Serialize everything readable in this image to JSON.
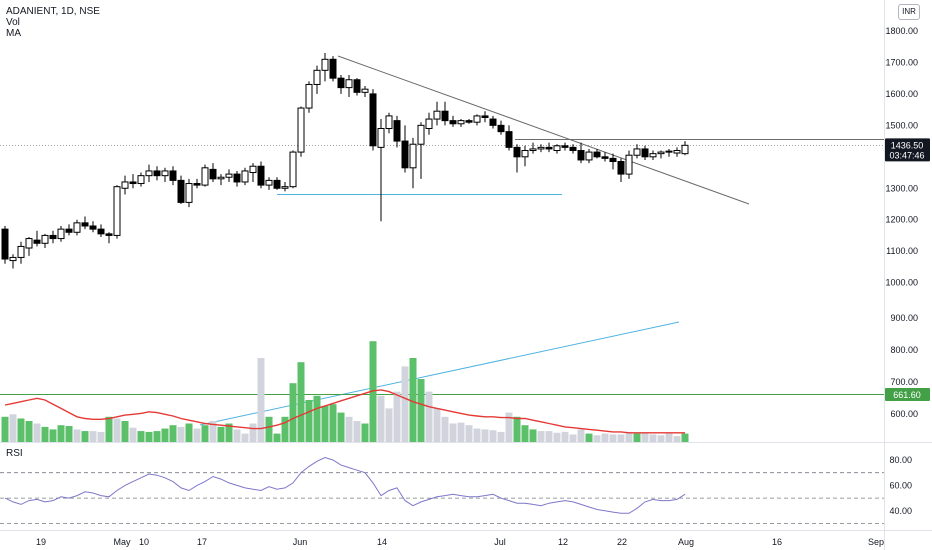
{
  "legend": {
    "symbol_line": "ADANIENT, 1D, NSE",
    "vol_label": "Vol",
    "ma_label": "MA",
    "rsi_label": "RSI"
  },
  "currency_button": "INR",
  "price_badge": {
    "price": "1436.50",
    "countdown": "03:47:46"
  },
  "volume_ma_badge": "661.60",
  "colors": {
    "up": "#ffffff",
    "down": "#000000",
    "wick": "#000000",
    "vol_green": "#5cbf6a",
    "vol_grey": "#d1d4dc",
    "vol_ma": "#e53935",
    "rsi_line": "#7e77c9",
    "trendline": "#6b6b6b",
    "blue_line": "#4fb3e0",
    "green_line": "#43a047"
  },
  "chart_data": {
    "type": "candlestick",
    "timeframe": "1D",
    "symbol": "ADANIENT",
    "exchange": "NSE",
    "currency": "INR",
    "x_tick_labels": [
      "19",
      "May",
      "10",
      "17",
      "Jun",
      "14",
      "Jul",
      "12",
      "22",
      "Aug",
      "16",
      "Sep"
    ],
    "price_axis": {
      "ylim": [
        930,
        1840
      ],
      "ticks": [
        1000,
        1100,
        1200,
        1300,
        1400,
        1500,
        1600,
        1700,
        1800
      ]
    },
    "volume_axis": {
      "ticks": [
        600,
        700,
        800,
        900
      ]
    },
    "rsi_axis": {
      "ylim": [
        25,
        93
      ],
      "ticks": [
        40,
        60,
        80
      ],
      "bands": [
        30,
        50,
        70
      ]
    },
    "last_price": 1436.5,
    "candles": [
      [
        1170,
        1180,
        1060,
        1075
      ],
      [
        1070,
        1090,
        1045,
        1080
      ],
      [
        1080,
        1130,
        1060,
        1115
      ],
      [
        1110,
        1145,
        1085,
        1140
      ],
      [
        1135,
        1165,
        1115,
        1125
      ],
      [
        1125,
        1155,
        1110,
        1150
      ],
      [
        1150,
        1165,
        1125,
        1140
      ],
      [
        1140,
        1180,
        1130,
        1170
      ],
      [
        1170,
        1185,
        1150,
        1160
      ],
      [
        1160,
        1200,
        1150,
        1190
      ],
      [
        1190,
        1210,
        1170,
        1180
      ],
      [
        1180,
        1195,
        1160,
        1170
      ],
      [
        1170,
        1185,
        1145,
        1155
      ],
      [
        1155,
        1160,
        1125,
        1150
      ],
      [
        1150,
        1310,
        1140,
        1305
      ],
      [
        1300,
        1340,
        1280,
        1320
      ],
      [
        1320,
        1345,
        1300,
        1315
      ],
      [
        1315,
        1350,
        1305,
        1340
      ],
      [
        1340,
        1375,
        1320,
        1355
      ],
      [
        1355,
        1370,
        1325,
        1340
      ],
      [
        1340,
        1365,
        1320,
        1355
      ],
      [
        1355,
        1370,
        1310,
        1325
      ],
      [
        1325,
        1340,
        1250,
        1255
      ],
      [
        1255,
        1330,
        1240,
        1315
      ],
      [
        1315,
        1330,
        1300,
        1310
      ],
      [
        1310,
        1375,
        1305,
        1365
      ],
      [
        1360,
        1380,
        1320,
        1330
      ],
      [
        1330,
        1345,
        1310,
        1335
      ],
      [
        1335,
        1360,
        1320,
        1345
      ],
      [
        1345,
        1355,
        1305,
        1320
      ],
      [
        1320,
        1365,
        1310,
        1355
      ],
      [
        1350,
        1380,
        1320,
        1370
      ],
      [
        1370,
        1385,
        1300,
        1310
      ],
      [
        1310,
        1335,
        1295,
        1325
      ],
      [
        1325,
        1335,
        1295,
        1300
      ],
      [
        1300,
        1320,
        1290,
        1305
      ],
      [
        1305,
        1420,
        1300,
        1415
      ],
      [
        1415,
        1560,
        1400,
        1555
      ],
      [
        1555,
        1640,
        1540,
        1630
      ],
      [
        1630,
        1690,
        1600,
        1675
      ],
      [
        1675,
        1730,
        1640,
        1710
      ],
      [
        1710,
        1720,
        1640,
        1650
      ],
      [
        1650,
        1660,
        1600,
        1620
      ],
      [
        1620,
        1660,
        1590,
        1645
      ],
      [
        1645,
        1650,
        1595,
        1605
      ],
      [
        1605,
        1625,
        1590,
        1615
      ],
      [
        1600,
        1615,
        1420,
        1435
      ],
      [
        1430,
        1520,
        1195,
        1490
      ],
      [
        1490,
        1540,
        1475,
        1530
      ],
      [
        1515,
        1530,
        1430,
        1450
      ],
      [
        1450,
        1500,
        1350,
        1365
      ],
      [
        1365,
        1460,
        1300,
        1440
      ],
      [
        1440,
        1510,
        1330,
        1500
      ],
      [
        1490,
        1540,
        1470,
        1520
      ],
      [
        1520,
        1575,
        1500,
        1545
      ],
      [
        1545,
        1575,
        1500,
        1515
      ],
      [
        1515,
        1530,
        1495,
        1505
      ],
      [
        1505,
        1520,
        1495,
        1515
      ],
      [
        1515,
        1520,
        1505,
        1510
      ],
      [
        1510,
        1535,
        1500,
        1530
      ],
      [
        1530,
        1545,
        1510,
        1525
      ],
      [
        1520,
        1530,
        1490,
        1500
      ],
      [
        1500,
        1515,
        1470,
        1480
      ],
      [
        1480,
        1500,
        1420,
        1430
      ],
      [
        1430,
        1440,
        1350,
        1400
      ],
      [
        1400,
        1435,
        1370,
        1420
      ],
      [
        1420,
        1445,
        1410,
        1425
      ],
      [
        1425,
        1440,
        1415,
        1430
      ],
      [
        1430,
        1445,
        1415,
        1425
      ],
      [
        1420,
        1440,
        1410,
        1435
      ],
      [
        1435,
        1445,
        1420,
        1430
      ],
      [
        1430,
        1440,
        1410,
        1420
      ],
      [
        1420,
        1445,
        1380,
        1390
      ],
      [
        1390,
        1425,
        1380,
        1415
      ],
      [
        1415,
        1425,
        1395,
        1400
      ],
      [
        1400,
        1415,
        1385,
        1395
      ],
      [
        1395,
        1410,
        1360,
        1385
      ],
      [
        1385,
        1395,
        1320,
        1345
      ],
      [
        1345,
        1420,
        1330,
        1405
      ],
      [
        1405,
        1440,
        1395,
        1425
      ],
      [
        1425,
        1435,
        1390,
        1400
      ],
      [
        1400,
        1420,
        1390,
        1410
      ],
      [
        1410,
        1420,
        1395,
        1415
      ],
      [
        1415,
        1425,
        1400,
        1418
      ],
      [
        1412,
        1430,
        1400,
        1420
      ],
      [
        1410,
        1450,
        1405,
        1436.5
      ]
    ],
    "volume": [
      [
        0.3,
        "green"
      ],
      [
        0.33,
        "grey"
      ],
      [
        0.28,
        "green"
      ],
      [
        0.25,
        "green"
      ],
      [
        0.22,
        "grey"
      ],
      [
        0.18,
        "green"
      ],
      [
        0.15,
        "green"
      ],
      [
        0.2,
        "green"
      ],
      [
        0.19,
        "green"
      ],
      [
        0.15,
        "grey"
      ],
      [
        0.13,
        "green"
      ],
      [
        0.13,
        "grey"
      ],
      [
        0.12,
        "grey"
      ],
      [
        0.3,
        "green"
      ],
      [
        0.28,
        "grey"
      ],
      [
        0.25,
        "green"
      ],
      [
        0.17,
        "grey"
      ],
      [
        0.13,
        "green"
      ],
      [
        0.12,
        "green"
      ],
      [
        0.13,
        "green"
      ],
      [
        0.16,
        "green"
      ],
      [
        0.2,
        "green"
      ],
      [
        0.18,
        "grey"
      ],
      [
        0.22,
        "green"
      ],
      [
        0.16,
        "grey"
      ],
      [
        0.2,
        "green"
      ],
      [
        0.25,
        "grey"
      ],
      [
        0.18,
        "green"
      ],
      [
        0.22,
        "green"
      ],
      [
        0.15,
        "grey"
      ],
      [
        0.1,
        "grey"
      ],
      [
        0.22,
        "grey"
      ],
      [
        1.0,
        "grey"
      ],
      [
        0.3,
        "green"
      ],
      [
        0.1,
        "green"
      ],
      [
        0.3,
        "green"
      ],
      [
        0.7,
        "green"
      ],
      [
        0.95,
        "green"
      ],
      [
        0.5,
        "green"
      ],
      [
        0.55,
        "green"
      ],
      [
        0.43,
        "green"
      ],
      [
        0.45,
        "green"
      ],
      [
        0.35,
        "green"
      ],
      [
        0.3,
        "grey"
      ],
      [
        0.25,
        "grey"
      ],
      [
        0.22,
        "green"
      ],
      [
        1.2,
        "green"
      ],
      [
        0.55,
        "grey"
      ],
      [
        0.4,
        "grey"
      ],
      [
        0.6,
        "grey"
      ],
      [
        0.9,
        "grey"
      ],
      [
        1.0,
        "green"
      ],
      [
        0.75,
        "green"
      ],
      [
        0.6,
        "grey"
      ],
      [
        0.4,
        "grey"
      ],
      [
        0.3,
        "grey"
      ],
      [
        0.22,
        "grey"
      ],
      [
        0.23,
        "grey"
      ],
      [
        0.2,
        "grey"
      ],
      [
        0.16,
        "grey"
      ],
      [
        0.15,
        "grey"
      ],
      [
        0.14,
        "grey"
      ],
      [
        0.12,
        "grey"
      ],
      [
        0.35,
        "grey"
      ],
      [
        0.3,
        "green"
      ],
      [
        0.2,
        "green"
      ],
      [
        0.15,
        "green"
      ],
      [
        0.13,
        "grey"
      ],
      [
        0.13,
        "grey"
      ],
      [
        0.11,
        "grey"
      ],
      [
        0.12,
        "grey"
      ],
      [
        0.09,
        "grey"
      ],
      [
        0.15,
        "grey"
      ],
      [
        0.1,
        "green"
      ],
      [
        0.08,
        "grey"
      ],
      [
        0.1,
        "grey"
      ],
      [
        0.09,
        "grey"
      ],
      [
        0.09,
        "grey"
      ],
      [
        0.12,
        "grey"
      ],
      [
        0.1,
        "green"
      ],
      [
        0.11,
        "grey"
      ],
      [
        0.09,
        "grey"
      ],
      [
        0.08,
        "grey"
      ],
      [
        0.1,
        "grey"
      ],
      [
        0.07,
        "grey"
      ],
      [
        0.1,
        "green"
      ]
    ],
    "volume_ma": [
      0.44,
      0.46,
      0.48,
      0.5,
      0.52,
      0.5,
      0.45,
      0.4,
      0.35,
      0.3,
      0.28,
      0.27,
      0.27,
      0.28,
      0.3,
      0.32,
      0.33,
      0.34,
      0.36,
      0.35,
      0.33,
      0.31,
      0.28,
      0.26,
      0.24,
      0.22,
      0.21,
      0.2,
      0.19,
      0.18,
      0.17,
      0.16,
      0.16,
      0.18,
      0.2,
      0.23,
      0.28,
      0.32,
      0.36,
      0.4,
      0.43,
      0.46,
      0.49,
      0.52,
      0.55,
      0.58,
      0.61,
      0.62,
      0.6,
      0.56,
      0.52,
      0.48,
      0.45,
      0.42,
      0.4,
      0.38,
      0.36,
      0.34,
      0.32,
      0.31,
      0.3,
      0.3,
      0.29,
      0.29,
      0.28,
      0.28,
      0.26,
      0.24,
      0.22,
      0.2,
      0.18,
      0.17,
      0.16,
      0.15,
      0.14,
      0.13,
      0.12,
      0.12,
      0.11,
      0.11,
      0.11,
      0.11,
      0.11,
      0.11,
      0.11,
      0.11
    ],
    "rsi": [
      50,
      47,
      45,
      48,
      49,
      47,
      48,
      51,
      50,
      52,
      55,
      54,
      52,
      51,
      56,
      60,
      63,
      66,
      69,
      68,
      66,
      63,
      58,
      56,
      60,
      63,
      67,
      65,
      62,
      60,
      58,
      57,
      56,
      59,
      57,
      58,
      62,
      70,
      75,
      79,
      82,
      80,
      76,
      74,
      72,
      70,
      62,
      52,
      56,
      58,
      48,
      44,
      47,
      49,
      51,
      52,
      53,
      52,
      51,
      51,
      52,
      53,
      50,
      48,
      46,
      46,
      45,
      44,
      46,
      47,
      48,
      47,
      45,
      43,
      41,
      40,
      39,
      38,
      38,
      42,
      47,
      49,
      48,
      48,
      49,
      53
    ]
  }
}
